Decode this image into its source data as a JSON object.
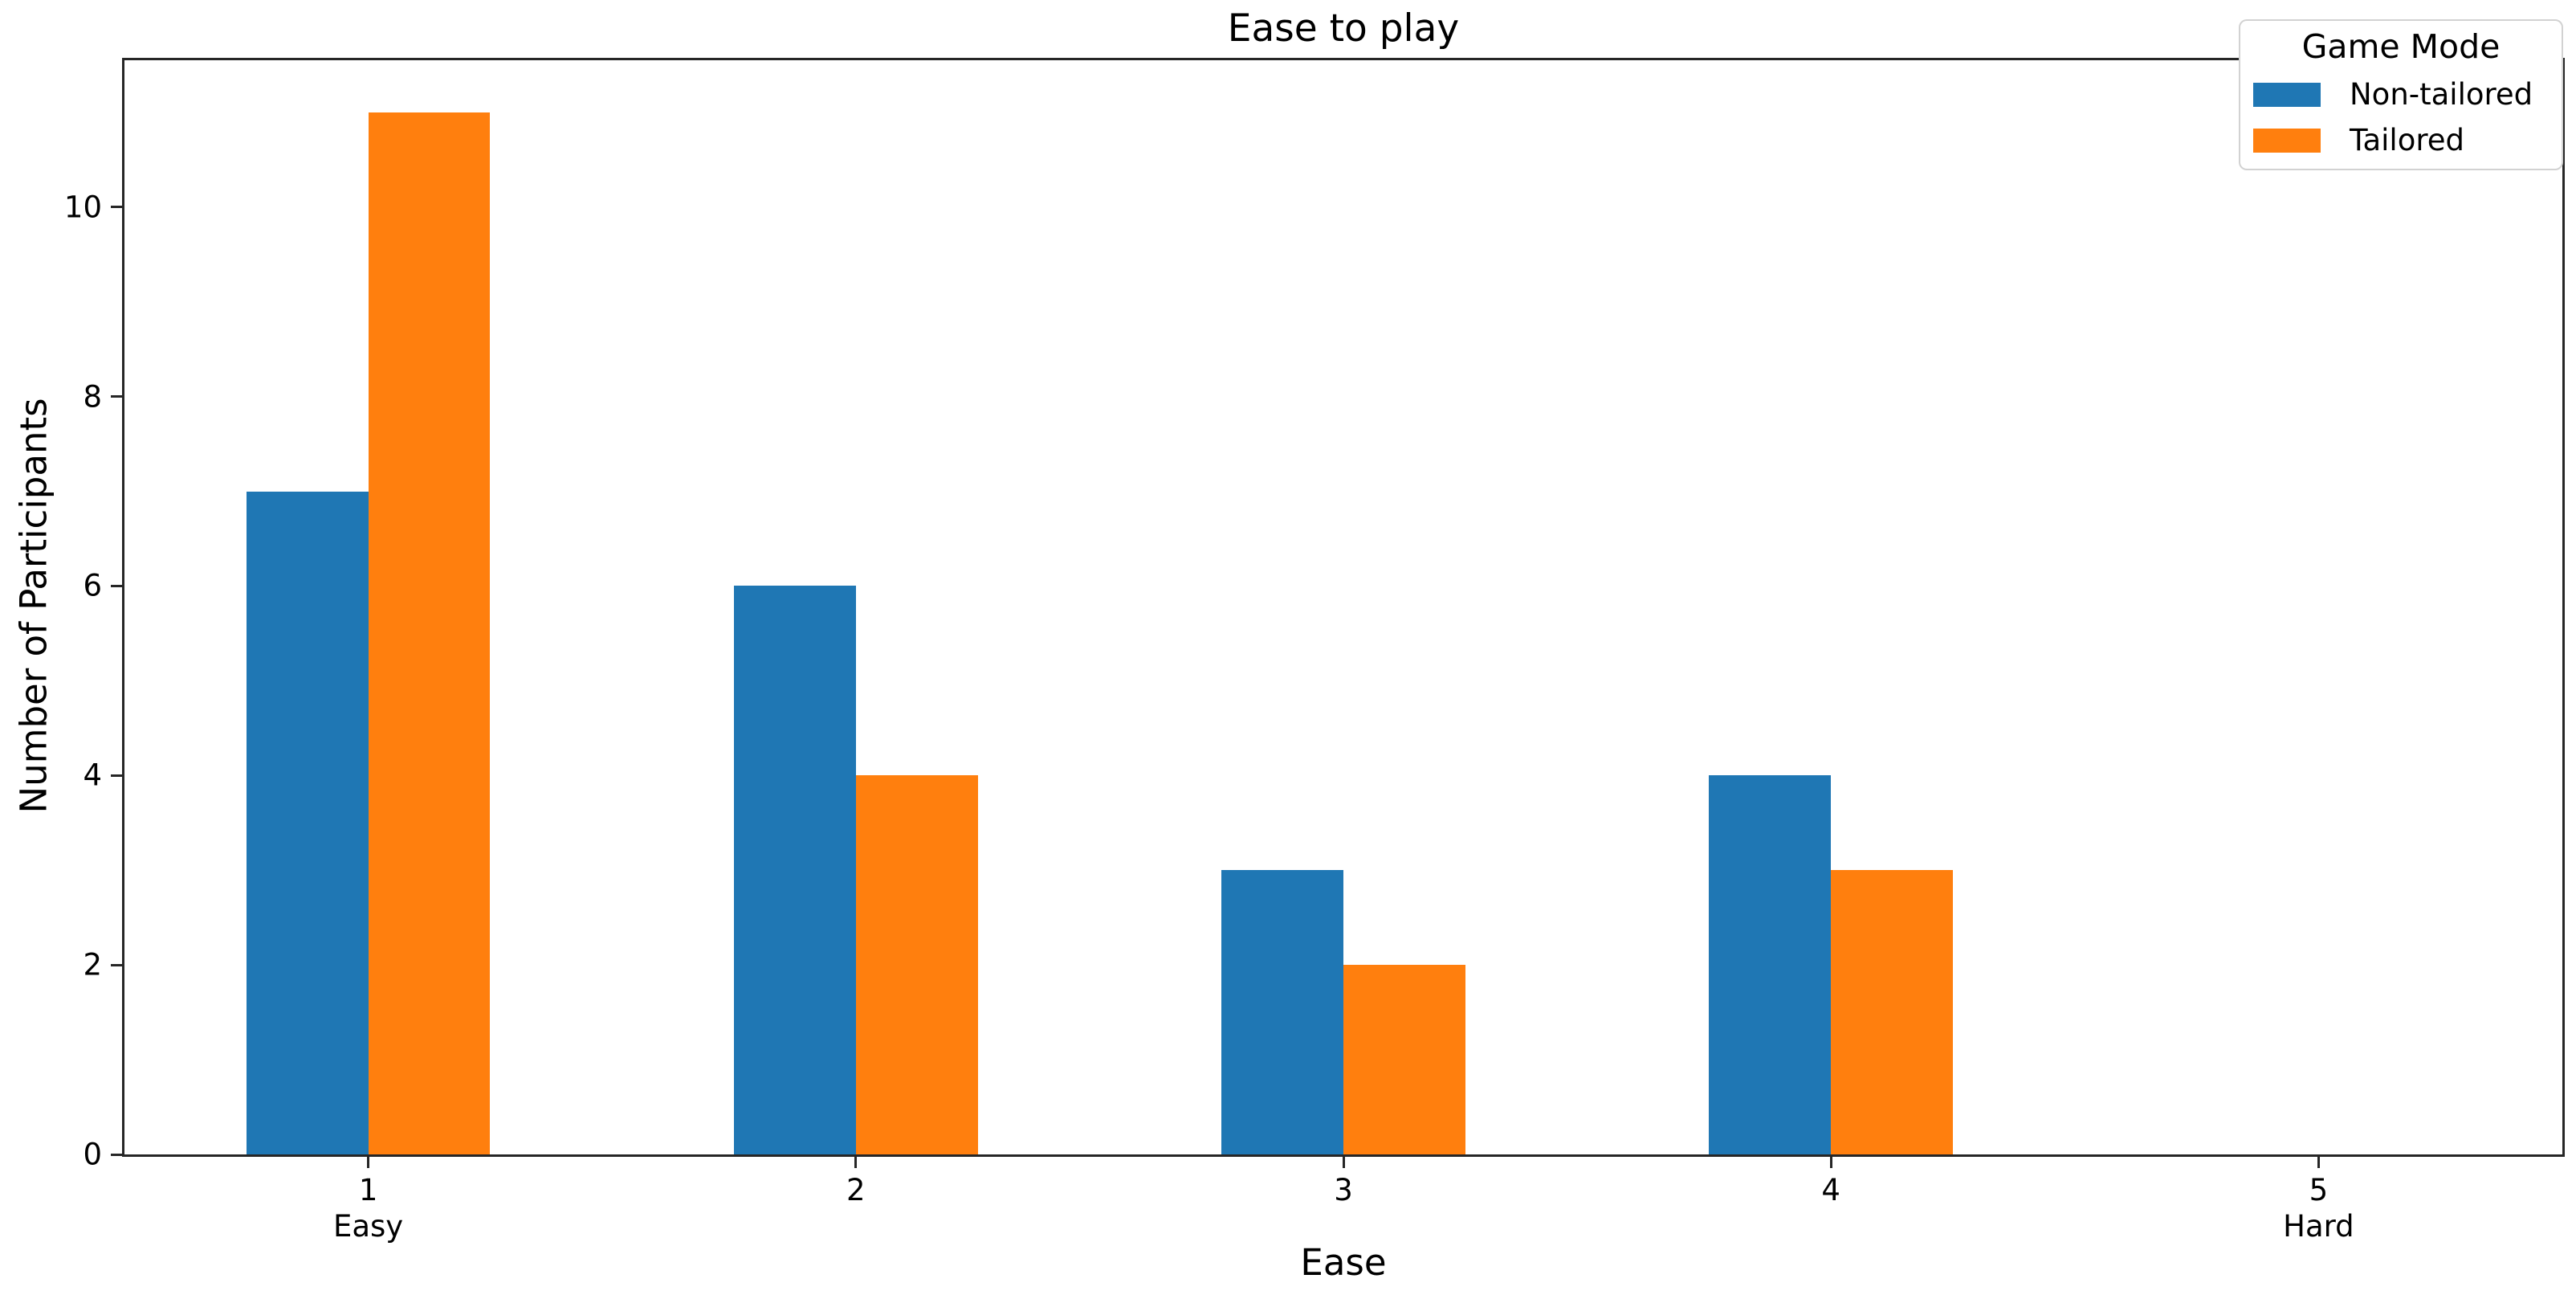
{
  "figure": {
    "title": "Ease to play",
    "background": "#ffffff"
  },
  "chart_data": {
    "type": "bar",
    "title": "Ease to play",
    "xlabel": "Ease",
    "ylabel": "Number of Participants",
    "categories": [
      "1",
      "2",
      "3",
      "4",
      "5"
    ],
    "category_sublabels": [
      "Easy",
      "",
      "",
      "",
      "Hard"
    ],
    "series": [
      {
        "name": "Non-tailored",
        "color": "#1f77b4",
        "values": [
          7,
          6,
          3,
          4,
          0
        ]
      },
      {
        "name": "Tailored",
        "color": "#ff7f0e",
        "values": [
          11,
          4,
          2,
          3,
          0
        ]
      }
    ],
    "yticks": [
      0,
      2,
      4,
      6,
      8,
      10
    ],
    "ylim": [
      0,
      11.55
    ],
    "grid": false,
    "legend_title": "Game Mode",
    "legend_position": "upper right",
    "bar_group_fraction": 0.5,
    "spine_color": "#262626"
  }
}
